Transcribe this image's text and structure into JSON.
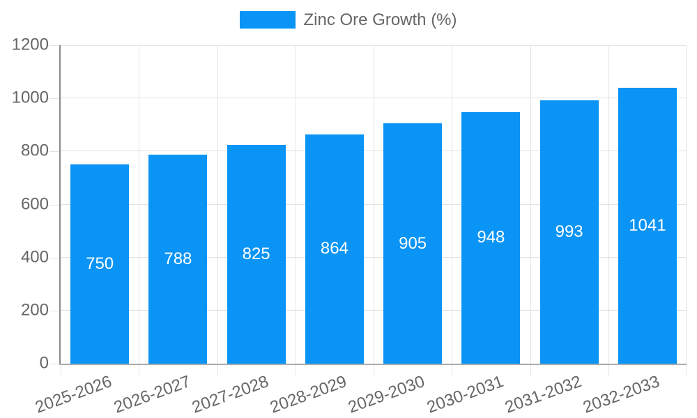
{
  "chart_data": {
    "type": "bar",
    "title": "",
    "legend": "Zinc Ore Growth (%)",
    "legend_position": "top",
    "categories": [
      "2025-2026",
      "2026-2027",
      "2027-2028",
      "2028-2029",
      "2029-2030",
      "2030-2031",
      "2031-2032",
      "2032-2033"
    ],
    "values": [
      750,
      788,
      825,
      864,
      905,
      948,
      993,
      1041
    ],
    "xlabel": "",
    "ylabel": "",
    "ylim": [
      0,
      1200
    ],
    "yticks": [
      0,
      200,
      400,
      600,
      800,
      1000,
      1200
    ],
    "grid": true,
    "value_labels_position": "inside-center",
    "x_label_rotation_deg": -20,
    "colors": {
      "bar": "#0A94F5",
      "value_label": "#FFFFFF",
      "tick_label": "#666666",
      "legend_label": "#666666",
      "grid": "#E3E3E3",
      "y_axis_line": "#8A8A8A",
      "x_axis_line": "#ABABAB",
      "background": "#FFFFFF"
    }
  }
}
